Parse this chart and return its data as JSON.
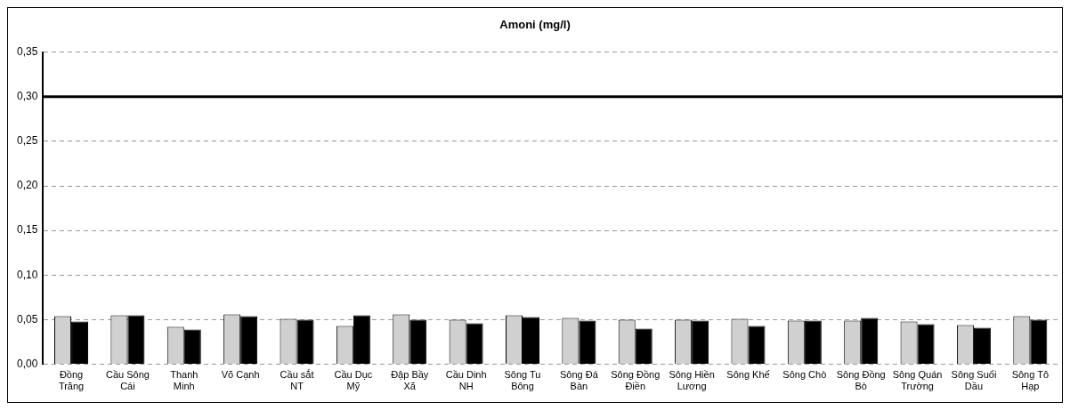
{
  "chart_data": {
    "type": "bar",
    "title": "Amoni (mg/l)",
    "categories": [
      "Đồng Trăng",
      "Cầu Sông Cái",
      "Thanh Minh",
      "Võ Cạnh",
      "Cầu sắt NT",
      "Cầu Dục Mỹ",
      "Đập Bầy Xã",
      "Cầu Dinh NH",
      "Sông Tu Bông",
      "Sông Đá Bàn",
      "Sông Đồng Điền",
      "Sông Hiền Lương",
      "Sông Khế",
      "Sông Chò",
      "Sông Đồng Bò",
      "Sông Quán Trường",
      "Sông Suối Dầu",
      "Sông Tô Hạp"
    ],
    "series": [
      {
        "color": "#d0d0d0",
        "values": [
          0.054,
          0.055,
          0.042,
          0.056,
          0.051,
          0.043,
          0.056,
          0.05,
          0.055,
          0.052,
          0.05,
          0.05,
          0.051,
          0.049,
          0.049,
          0.048,
          0.044,
          0.054
        ]
      },
      {
        "color": "#000000",
        "values": [
          0.048,
          0.055,
          0.039,
          0.054,
          0.05,
          0.055,
          0.05,
          0.046,
          0.053,
          0.049,
          0.04,
          0.049,
          0.043,
          0.049,
          0.052,
          0.045,
          0.041,
          0.05
        ]
      }
    ],
    "ylim": [
      0,
      0.35
    ],
    "yticks": [
      {
        "value": 0,
        "label": "0,00"
      },
      {
        "value": 0.05,
        "label": "0,05"
      },
      {
        "value": 0.1,
        "label": "0,10"
      },
      {
        "value": 0.15,
        "label": "0,15"
      },
      {
        "value": 0.2,
        "label": "0,20"
      },
      {
        "value": 0.25,
        "label": "0,25"
      },
      {
        "value": 0.3,
        "label": "0,30"
      },
      {
        "value": 0.35,
        "label": "0,35"
      }
    ],
    "grid": "y",
    "legend": false,
    "ref_lines": [
      {
        "axis": "y",
        "value": 0.3,
        "color": "#000000"
      }
    ]
  }
}
